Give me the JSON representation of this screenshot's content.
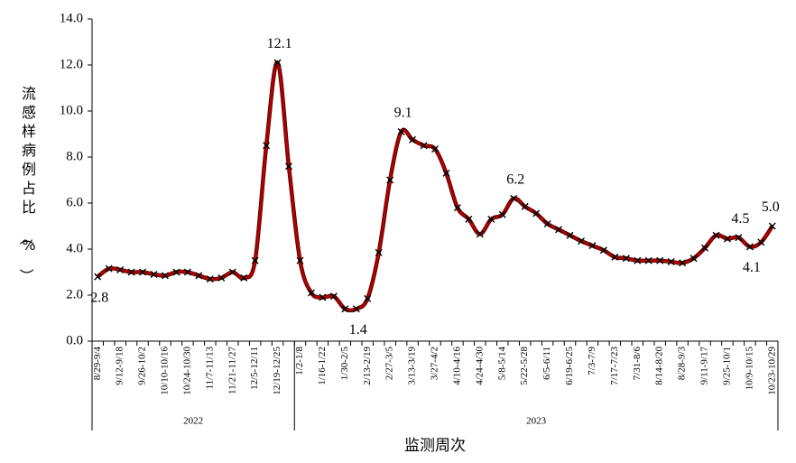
{
  "chart_data": {
    "type": "line",
    "y_label": "流感样病例占比（%）",
    "x_label": "监测周次",
    "categories": [
      "8/29-9/4",
      null,
      "9/12-9/18",
      null,
      "9/26-10/2",
      null,
      "10/10-10/16",
      null,
      "10/24-10/30",
      null,
      "11/7-11/13",
      null,
      "11/21-11/27",
      null,
      "12/5-12/11",
      null,
      "12/19-12/25",
      null,
      "1/2-1/8",
      null,
      "1/16-1/22",
      null,
      "1/30-2/5",
      null,
      "2/13-2/19",
      null,
      "2/27-3/5",
      null,
      "3/13-3/19",
      null,
      "3/27-4/2",
      null,
      "4/10-4/16",
      null,
      "4/24-4/30",
      null,
      "5/8-5/14",
      null,
      "5/22-5/28",
      null,
      "6/5-6/11",
      null,
      "6/19-6/25",
      null,
      "7/3-7/9",
      null,
      "7/17-7/23",
      null,
      "7/31-8/6",
      null,
      "8/14-8/20",
      null,
      "8/28-9/3",
      null,
      "9/11-9/17",
      null,
      "9/25-10/1",
      null,
      "10/9-10/15",
      null,
      "10/23-10/29"
    ],
    "year_groups": [
      {
        "label": "2022",
        "span": 18
      },
      {
        "label": "2023",
        "span": 43
      }
    ],
    "series": [
      {
        "name": "流感样病例占比",
        "color": "#b30000",
        "values": [
          2.8,
          3.15,
          3.1,
          3.0,
          3.0,
          2.9,
          2.85,
          3.0,
          3.0,
          2.85,
          2.7,
          2.75,
          3.0,
          2.75,
          3.5,
          8.5,
          12.1,
          7.6,
          3.5,
          2.1,
          1.9,
          1.95,
          1.4,
          1.4,
          1.85,
          3.85,
          7.0,
          9.1,
          8.75,
          8.5,
          8.35,
          7.3,
          5.8,
          5.3,
          4.65,
          5.3,
          5.5,
          6.2,
          5.85,
          5.55,
          5.1,
          4.85,
          4.6,
          4.35,
          4.15,
          3.95,
          3.65,
          3.6,
          3.5,
          3.5,
          3.5,
          3.45,
          3.4,
          3.6,
          4.05,
          4.6,
          4.45,
          4.5,
          4.1,
          4.3,
          5.0
        ],
        "value_labels": [
          "2.8",
          null,
          null,
          null,
          null,
          null,
          null,
          null,
          null,
          null,
          null,
          null,
          null,
          null,
          null,
          null,
          "12.1",
          null,
          null,
          null,
          null,
          null,
          null,
          "1.4",
          null,
          null,
          null,
          "9.1",
          null,
          null,
          null,
          null,
          null,
          null,
          null,
          null,
          null,
          "6.2",
          null,
          null,
          null,
          null,
          null,
          null,
          null,
          null,
          null,
          null,
          null,
          null,
          null,
          null,
          null,
          null,
          null,
          null,
          null,
          "4.5",
          "4.1",
          null,
          "5.0"
        ]
      }
    ],
    "ylim": [
      0,
      14
    ],
    "yticks": [
      {
        "value": 0,
        "label": "0.0"
      },
      {
        "value": 2,
        "label": "2.0"
      },
      {
        "value": 4,
        "label": "4.0"
      },
      {
        "value": 6,
        "label": "6.0"
      },
      {
        "value": 8,
        "label": "8.0"
      },
      {
        "value": 10,
        "label": "10.0"
      },
      {
        "value": 12,
        "label": "12.0"
      },
      {
        "value": 14,
        "label": "14.0"
      }
    ],
    "marker": "x",
    "smooth": true
  }
}
